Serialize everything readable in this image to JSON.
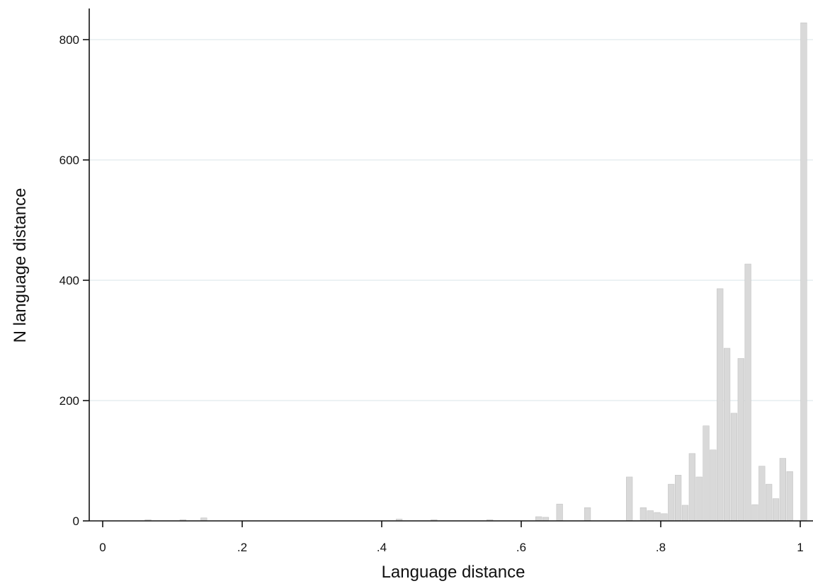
{
  "chart_data": {
    "type": "bar",
    "title": "",
    "xlabel": "Language distance",
    "ylabel": "N language distance",
    "xlim": [
      0,
      1
    ],
    "ylim": [
      0,
      830
    ],
    "x_ticks": [
      {
        "value": 0,
        "label": "0"
      },
      {
        "value": 0.2,
        "label": ".2"
      },
      {
        "value": 0.4,
        "label": ".4"
      },
      {
        "value": 0.6,
        "label": ".6"
      },
      {
        "value": 0.8,
        "label": ".8"
      },
      {
        "value": 1,
        "label": "1"
      }
    ],
    "y_ticks": [
      {
        "value": 0,
        "label": "0"
      },
      {
        "value": 200,
        "label": "200"
      },
      {
        "value": 400,
        "label": "400"
      },
      {
        "value": 600,
        "label": "600"
      },
      {
        "value": 800,
        "label": "800"
      }
    ],
    "grid": true,
    "bar_width": 0.01,
    "bars": [
      {
        "x": 0.065,
        "y": 2
      },
      {
        "x": 0.115,
        "y": 2
      },
      {
        "x": 0.145,
        "y": 5
      },
      {
        "x": 0.425,
        "y": 3
      },
      {
        "x": 0.475,
        "y": 2
      },
      {
        "x": 0.555,
        "y": 2
      },
      {
        "x": 0.625,
        "y": 7
      },
      {
        "x": 0.635,
        "y": 6
      },
      {
        "x": 0.655,
        "y": 28
      },
      {
        "x": 0.695,
        "y": 22
      },
      {
        "x": 0.755,
        "y": 73
      },
      {
        "x": 0.775,
        "y": 22
      },
      {
        "x": 0.785,
        "y": 17
      },
      {
        "x": 0.795,
        "y": 14
      },
      {
        "x": 0.805,
        "y": 12
      },
      {
        "x": 0.815,
        "y": 61
      },
      {
        "x": 0.825,
        "y": 76
      },
      {
        "x": 0.835,
        "y": 26
      },
      {
        "x": 0.845,
        "y": 112
      },
      {
        "x": 0.855,
        "y": 73
      },
      {
        "x": 0.865,
        "y": 158
      },
      {
        "x": 0.875,
        "y": 118
      },
      {
        "x": 0.885,
        "y": 386
      },
      {
        "x": 0.895,
        "y": 287
      },
      {
        "x": 0.905,
        "y": 179
      },
      {
        "x": 0.915,
        "y": 270
      },
      {
        "x": 0.925,
        "y": 427
      },
      {
        "x": 0.935,
        "y": 27
      },
      {
        "x": 0.945,
        "y": 91
      },
      {
        "x": 0.955,
        "y": 61
      },
      {
        "x": 0.965,
        "y": 37
      },
      {
        "x": 0.975,
        "y": 104
      },
      {
        "x": 0.985,
        "y": 82
      },
      {
        "x": 1.005,
        "y": 828
      }
    ],
    "colors": {
      "bar_fill": "#d9d9d9",
      "bar_stroke": "#c4c4c4",
      "grid": "#e6eef0",
      "axis": "#111111"
    }
  }
}
